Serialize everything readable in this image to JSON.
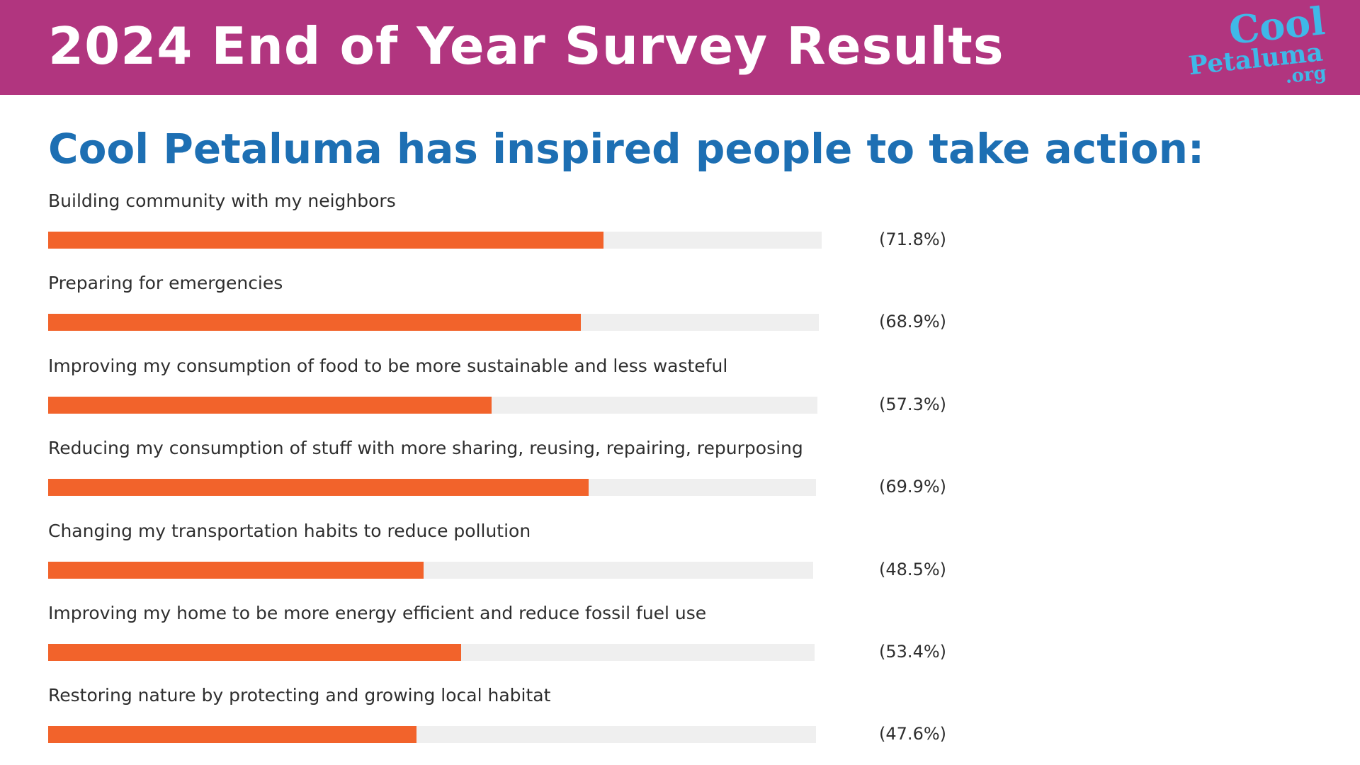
{
  "header": {
    "title": "2024 End of Year Survey Results",
    "logo": {
      "line1": "Cool",
      "line2": "Petaluma",
      "line3": ".org"
    }
  },
  "colors": {
    "header_bg": "#b1357f",
    "subtitle": "#1d6fb3",
    "bar": "#f2632b",
    "track": "#efefef",
    "logo": "#3fb8e8"
  },
  "chart_data": {
    "type": "bar",
    "orientation": "horizontal",
    "title": "Cool Petaluma has inspired people to take action:",
    "xlim": [
      0,
      100
    ],
    "unit": "%",
    "categories": [
      "Building community with my neighbors",
      "Preparing for emergencies",
      "Improving my consumption of food to be more sustainable and less wasteful",
      "Reducing my consumption of stuff with more sharing, reusing, repairing, repurposing",
      "Changing my transportation habits to reduce pollution",
      "Improving my home to be more energy efficient and reduce fossil fuel use",
      "Restoring nature by protecting and growing local habitat"
    ],
    "values": [
      71.8,
      68.9,
      57.3,
      69.9,
      48.5,
      53.4,
      47.6
    ],
    "value_labels": [
      "(71.8%)",
      "(68.9%)",
      "(57.3%)",
      "(69.9%)",
      "(48.5%)",
      "(53.4%)",
      "(47.6%)"
    ]
  }
}
